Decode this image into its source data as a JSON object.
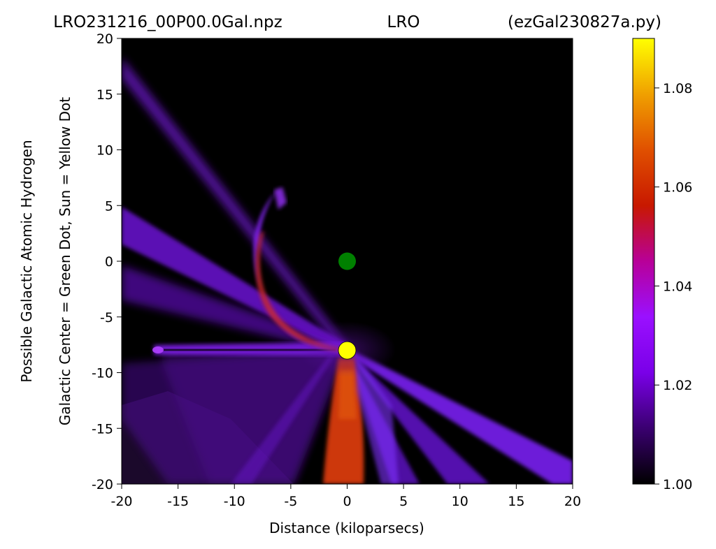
{
  "chart_data": {
    "type": "heatmap",
    "title": {
      "left": "LRO231216_00P00.0Gal.npz",
      "center": "LRO",
      "right": "(ezGal230827a.py)"
    },
    "xlabel": "Distance (kiloparsecs)",
    "ylabel_lines": [
      "Possible Galactic Atomic Hydrogen",
      "Galactic Center = Green Dot, Sun = Yellow Dot"
    ],
    "xlim": [
      -20,
      20
    ],
    "ylim": [
      -20,
      20
    ],
    "x_ticks": [
      -20,
      -15,
      -10,
      -5,
      0,
      5,
      10,
      15,
      20
    ],
    "y_ticks": [
      -20,
      -15,
      -10,
      -5,
      0,
      5,
      10,
      15,
      20
    ],
    "colorbar": {
      "range": [
        1.0,
        1.09
      ],
      "ticks": [
        "1.00",
        "1.02",
        "1.04",
        "1.06",
        "1.08"
      ],
      "colormap": "gnuplot",
      "colors": [
        "#000000",
        "#3a0070",
        "#7a00e8",
        "#9a10ff",
        "#b80098",
        "#c81800",
        "#e05000",
        "#f0a000",
        "#ffff00"
      ]
    },
    "markers": [
      {
        "x": 0,
        "y": 0,
        "color": "#008000"
      },
      {
        "x": 0,
        "y": -8,
        "color": "#ffff00"
      }
    ],
    "grid": false
  }
}
